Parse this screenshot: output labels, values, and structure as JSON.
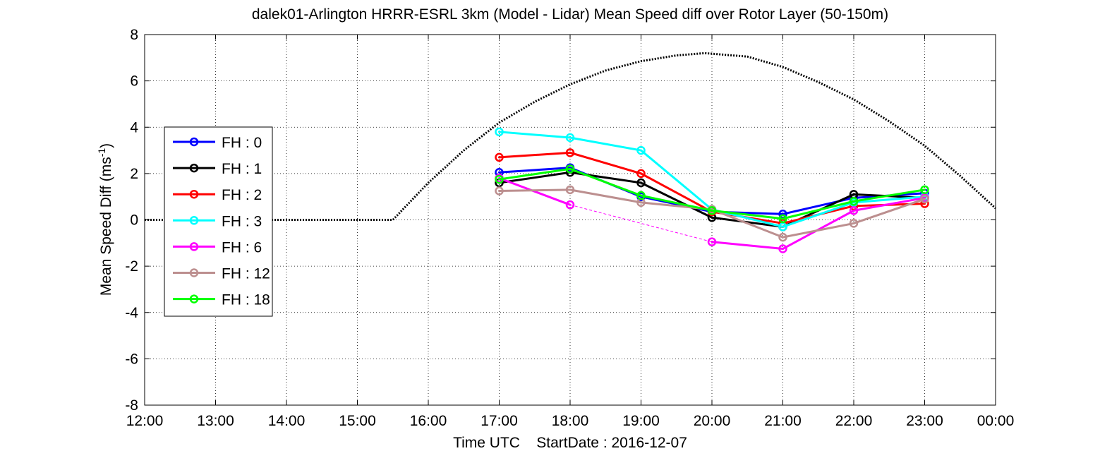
{
  "chart_data": {
    "type": "line",
    "title": "dalek01-Arlington HRRR-ESRL 3km (Model - Lidar) Mean Speed diff over Rotor Layer (50-150m)",
    "xlabel": "Time UTC    StartDate : 2016-12-07",
    "ylabel_main": "Mean Speed Diff (ms",
    "ylabel_sup": "-1",
    "ylabel_tail": ")",
    "xlim": [
      12,
      24
    ],
    "ylim": [
      -8,
      8
    ],
    "x_ticks": [
      12,
      13,
      14,
      15,
      16,
      17,
      18,
      19,
      20,
      21,
      22,
      23,
      24
    ],
    "x_tick_labels": [
      "12:00",
      "13:00",
      "14:00",
      "15:00",
      "16:00",
      "17:00",
      "18:00",
      "19:00",
      "20:00",
      "21:00",
      "22:00",
      "23:00",
      "00:00"
    ],
    "y_ticks": [
      -8,
      -6,
      -4,
      -2,
      0,
      2,
      4,
      6,
      8
    ],
    "y_tick_labels": [
      "-8",
      "-6",
      "-4",
      "-2",
      "0",
      "2",
      "4",
      "6",
      "8"
    ],
    "grid": true,
    "legend_position": "left-middle",
    "x": [
      17,
      18,
      19,
      20,
      21,
      22,
      23
    ],
    "series": [
      {
        "name": "FH : 0",
        "color": "#0000ff",
        "values": [
          2.05,
          2.25,
          1.0,
          0.35,
          0.25,
          0.95,
          1.15
        ]
      },
      {
        "name": "FH : 1",
        "color": "#000000",
        "values": [
          1.6,
          2.05,
          1.6,
          0.1,
          -0.3,
          1.1,
          0.95
        ]
      },
      {
        "name": "FH : 2",
        "color": "#ff0000",
        "values": [
          2.7,
          2.9,
          2.0,
          0.35,
          -0.15,
          0.6,
          0.7
        ]
      },
      {
        "name": "FH : 3",
        "color": "#00ffff",
        "values": [
          3.8,
          3.55,
          3.0,
          0.45,
          -0.3,
          0.75,
          1.0
        ]
      },
      {
        "name": "FH : 6",
        "color": "#ff00ff",
        "values": [
          1.8,
          0.65,
          null,
          -0.95,
          -1.25,
          0.4,
          0.95
        ]
      },
      {
        "name": "FH : 12",
        "color": "#bc8f8f",
        "values": [
          1.25,
          1.3,
          0.75,
          0.45,
          -0.75,
          -0.15,
          0.9
        ]
      },
      {
        "name": "FH : 18",
        "color": "#00ff00",
        "values": [
          1.75,
          2.2,
          1.05,
          0.4,
          0.05,
          0.8,
          1.3
        ]
      }
    ],
    "dashed_segment": {
      "series": "FH : 6",
      "from_x": 18,
      "to_x": 20
    },
    "reference_curve": {
      "style": "dotted",
      "color": "#000000",
      "points": [
        [
          12,
          0
        ],
        [
          15.5,
          0
        ],
        [
          16.0,
          1.6
        ],
        [
          16.5,
          3.0
        ],
        [
          17,
          4.2
        ],
        [
          17.5,
          5.1
        ],
        [
          18,
          5.85
        ],
        [
          18.5,
          6.45
        ],
        [
          19,
          6.85
        ],
        [
          19.5,
          7.1
        ],
        [
          19.9,
          7.2
        ],
        [
          20.5,
          7.05
        ],
        [
          21,
          6.6
        ],
        [
          21.5,
          5.95
        ],
        [
          22,
          5.2
        ],
        [
          22.5,
          4.25
        ],
        [
          23,
          3.2
        ],
        [
          23.5,
          1.9
        ],
        [
          24,
          0.5
        ]
      ]
    }
  }
}
